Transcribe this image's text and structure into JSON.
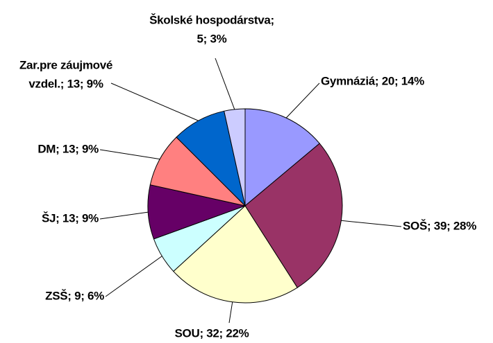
{
  "chart_data": {
    "type": "pie",
    "values": [
      20,
      39,
      32,
      9,
      13,
      13,
      13,
      5
    ],
    "value_labels": [
      [
        "Gymnáziá; 20; 14%"
      ],
      [
        "SOŠ; 39; 28%"
      ],
      [
        "SOU; 32; 22%"
      ],
      [
        "ZSŠ; 9; 6%"
      ],
      [
        "ŠJ; 13; 9%"
      ],
      [
        "DM; 13; 9%"
      ],
      [
        "Zar.pre záujmové",
        "vzdel.; 13; 9%"
      ],
      [
        "Školské hospodárstva;",
        "5; 3%"
      ]
    ],
    "colors": [
      "#9999ff",
      "#993366",
      "#ffffcc",
      "#ccffff",
      "#660066",
      "#ff8080",
      "#0066cc",
      "#ccccff"
    ]
  }
}
